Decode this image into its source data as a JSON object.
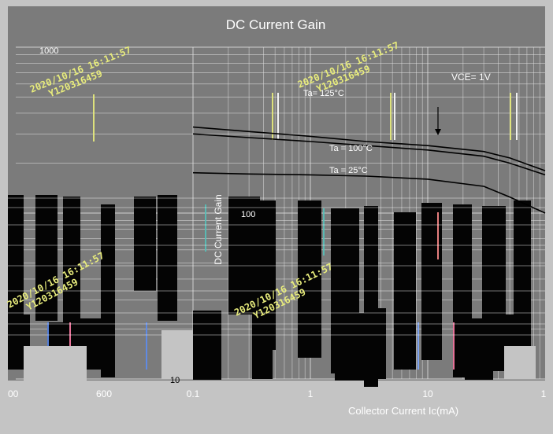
{
  "chart_data": {
    "type": "line",
    "title": "DC Current Gain",
    "xlabel": "Collector Current   Ic(mA)",
    "ylabel": "DC Current Gain",
    "x_scale": "log",
    "y_scale": "log",
    "xlim": [
      0.1,
      100
    ],
    "ylim": [
      10,
      1000
    ],
    "x_ticks": [
      "0.1",
      "1",
      "10",
      "1"
    ],
    "y_ticks": [
      "1000",
      "100",
      "10"
    ],
    "left_axis_ticks": [
      "00",
      "600"
    ],
    "annotations": [
      "VCE= 1V",
      "Ta= 125°C",
      "Ta = 100°C",
      "Ta = 25°C"
    ],
    "watermarks": [
      "2020/10/16  16:11:57",
      "Y120316459"
    ],
    "series": [
      {
        "name": "Ta= 125°C",
        "x": [
          0.1,
          0.3,
          1,
          3,
          10,
          30,
          50,
          100
        ],
        "y": [
          330,
          310,
          290,
          270,
          255,
          235,
          215,
          180
        ]
      },
      {
        "name": "Ta = 100°C",
        "x": [
          0.1,
          0.3,
          1,
          3,
          10,
          30,
          50,
          100
        ],
        "y": [
          300,
          285,
          270,
          255,
          240,
          220,
          200,
          170
        ]
      },
      {
        "name": "Ta = 25°C",
        "x": [
          0.1,
          0.3,
          1,
          3,
          10,
          30,
          50,
          100
        ],
        "y": [
          175,
          172,
          170,
          167,
          160,
          145,
          125,
          100
        ]
      }
    ],
    "grid": true,
    "colors": {
      "background": "#c4c4c4",
      "panel": "#7b7b7b",
      "grid": "#e4e4e4",
      "line": "#000000",
      "watermark": "#e8ec7c"
    }
  }
}
